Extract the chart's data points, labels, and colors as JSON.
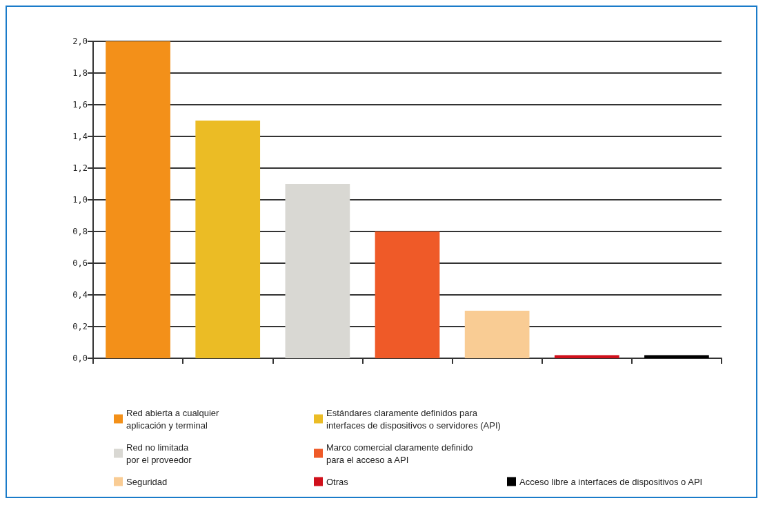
{
  "chart_data": {
    "type": "bar",
    "categories": [
      null,
      null,
      null,
      null,
      null,
      null,
      null
    ],
    "series": [
      {
        "name": "Red abierta a cualquier\naplicación y terminal",
        "color": "#f39019",
        "values": [
          2.0,
          null,
          null,
          null,
          null,
          null,
          null
        ]
      },
      {
        "name": "Estándares claramente definidos para\ninterfaces de dispositivos o servidores (API)",
        "color": "#ebbc25",
        "values": [
          null,
          1.5,
          null,
          null,
          null,
          null,
          null
        ]
      },
      {
        "name": "Red no limitada\npor el proveedor",
        "color": "#d9d8d3",
        "values": [
          null,
          null,
          1.1,
          null,
          null,
          null,
          null
        ]
      },
      {
        "name": "Marco comercial claramente definido\npara el acceso a API",
        "color": "#ef5a28",
        "values": [
          null,
          null,
          null,
          0.8,
          null,
          null,
          null
        ]
      },
      {
        "name": "Seguridad",
        "color": "#f9cc94",
        "values": [
          null,
          null,
          null,
          null,
          0.3,
          null,
          null
        ]
      },
      {
        "name": "Otras",
        "color": "#d0101b",
        "values": [
          null,
          null,
          null,
          null,
          null,
          0.02,
          null
        ]
      },
      {
        "name": "Acceso libre a interfaces de dispositivos o API",
        "color": "#000000",
        "values": [
          null,
          null,
          null,
          null,
          null,
          null,
          0.02
        ]
      }
    ],
    "ylim": [
      0,
      2.0
    ],
    "yticks": [
      {
        "value": 0,
        "label": "0,0"
      },
      {
        "value": 0.2,
        "label": "0,2"
      },
      {
        "value": 0.4,
        "label": "0,4"
      },
      {
        "value": 0.6,
        "label": "0,6"
      },
      {
        "value": 0.8,
        "label": "0,8"
      },
      {
        "value": 1.0,
        "label": "1,0"
      },
      {
        "value": 1.2,
        "label": "1,2"
      },
      {
        "value": 1.4,
        "label": "1,4"
      },
      {
        "value": 1.6,
        "label": "1,6"
      },
      {
        "value": 1.8,
        "label": "1,8"
      },
      {
        "value": 2.0,
        "label": "2,0"
      }
    ],
    "grid": "y",
    "legend": "bottom"
  }
}
